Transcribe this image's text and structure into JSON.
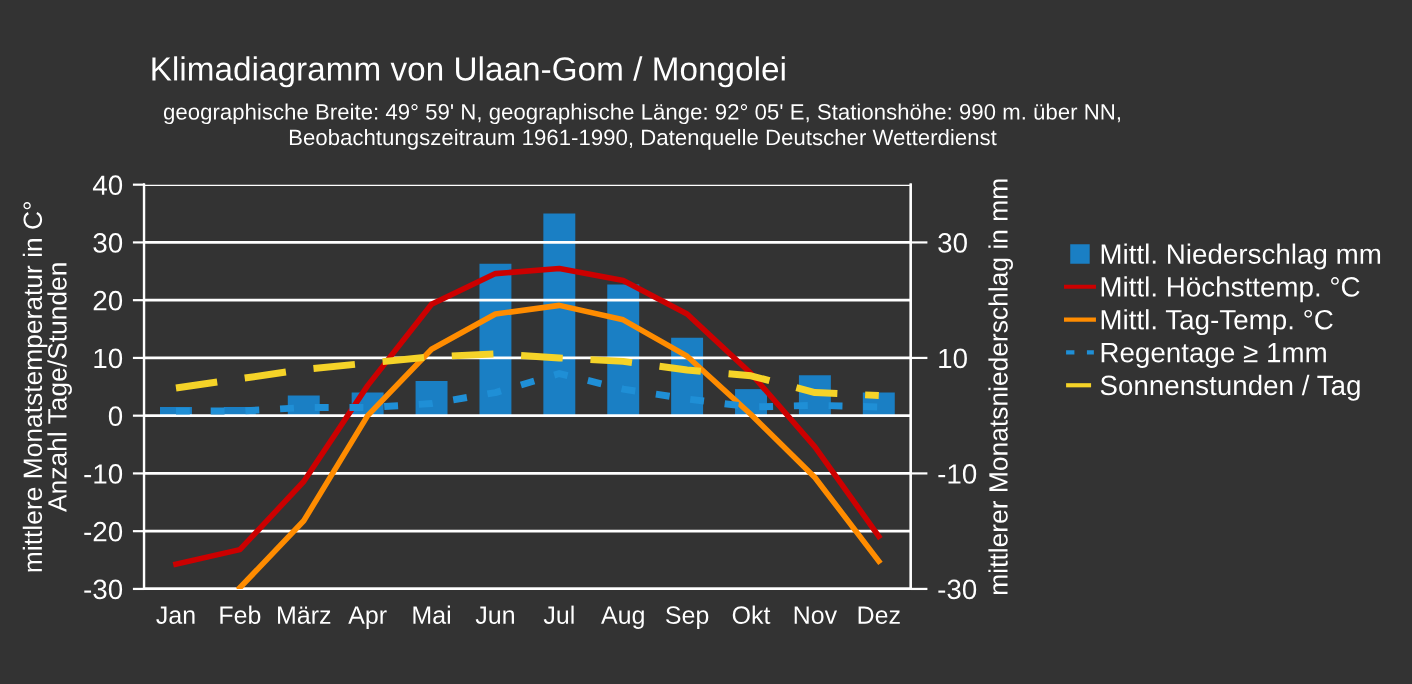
{
  "chart_data": {
    "type": "line",
    "title": "Klimadiagramm von Ulaan-Gom / Mongolei",
    "subtitle": "geographische Breite: 49° 59' N, geographische Länge: 92° 05' E, Stationshöhe: 990 m. über NN,\nBeobachtungszeitraum 1961-1990, Datenquelle Deutscher Wetterdienst",
    "ylabel": "mittlere Monatstemperatur in C°\nAnzahl Tage/Stunden",
    "y2label": "mittlerer Monatsniederschlag in mm",
    "categories": [
      "Jan",
      "Feb",
      "März",
      "Apr",
      "Mai",
      "Jun",
      "Jul",
      "Aug",
      "Sep",
      "Okt",
      "Nov",
      "Dez"
    ],
    "series": [
      {
        "name": "Mittl. Niederschlag mm",
        "type": "bar",
        "axis": "y2",
        "color": "#1a7fc4",
        "values": [
          1.5,
          1.5,
          3.5,
          4,
          6,
          26.3,
          35,
          22.7,
          13.5,
          4.6,
          7,
          4
        ]
      },
      {
        "name": "Mittl. Höchsttemp. °C",
        "color": "#cc0000",
        "line_style": "solid",
        "values": [
          -25.7,
          -23.2,
          -11.4,
          5.2,
          19.3,
          24.6,
          25.5,
          23.4,
          17.6,
          7.3,
          -5.4,
          -20.9
        ]
      },
      {
        "name": "Mittl. Tag-Temp. °C",
        "color": "#ff8c00",
        "line_style": "solid",
        "values": [
          null,
          -29.8,
          -18.2,
          0,
          11.5,
          17.6,
          19.1,
          16.6,
          10.3,
          0.2,
          -10.7,
          -25.2
        ]
      },
      {
        "name": "Regentage ≥ 1mm",
        "color": "#1f8fd6",
        "line_style": "dotted",
        "values": [
          0.8,
          0.8,
          1.4,
          1.4,
          2.1,
          4,
          7.3,
          4.6,
          2.9,
          1.5,
          1.8,
          1.5
        ]
      },
      {
        "name": "Sonnenstunden / Tag",
        "color": "#f5d328",
        "line_style": "dashed",
        "values": [
          4.8,
          6.4,
          8,
          9.1,
          10.2,
          10.7,
          10,
          9.4,
          7.9,
          6.9,
          4,
          3.5
        ]
      }
    ],
    "ylim": [
      -30,
      40
    ],
    "yticks": [
      -30,
      -20,
      -10,
      0,
      10,
      20,
      30,
      40
    ],
    "y2lim": [
      -30,
      40
    ],
    "y2ticks": [
      -30,
      -10,
      10,
      30
    ],
    "grid": "y",
    "legend": "right",
    "marker": "none"
  }
}
